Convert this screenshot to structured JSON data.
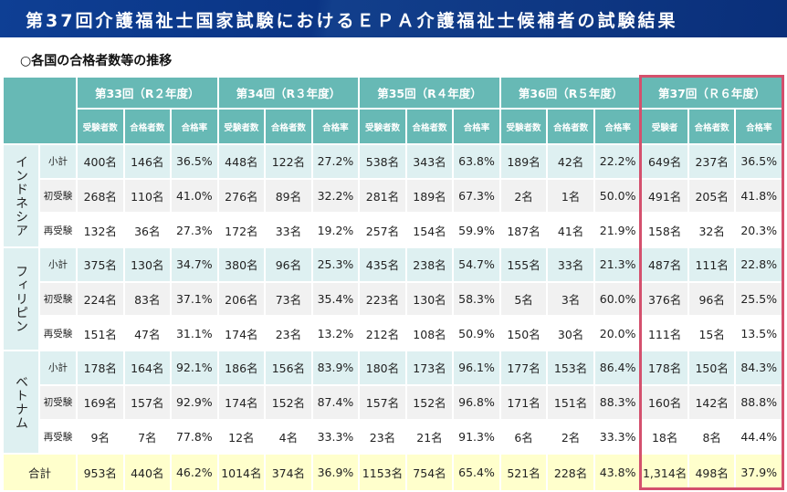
{
  "title": "第37回介護福祉士国家試験におけるＥＰＡ介護福祉士候補者の試験結果",
  "subtitle": "○各国の合格者数等の推移",
  "groups": [
    "第33回（R２年度）",
    "第34回（R３年度）",
    "第35回（R４年度）",
    "第36回（R５年度）",
    "第37回（Ｒ６年度）"
  ],
  "subheaders": [
    [
      "受験者数",
      "合格者数",
      "合格率"
    ],
    [
      "受験者数",
      "合格者数",
      "合格率"
    ],
    [
      "受験者数",
      "合格者数",
      "合格率"
    ],
    [
      "受験者数",
      "合格者数",
      "合格率"
    ],
    [
      "受験者",
      "合格者数",
      "合格率"
    ]
  ],
  "countries": [
    {
      "name": "インドネシア",
      "rows": [
        {
          "label": "小計",
          "cells": [
            "400名",
            "146名",
            "36.5%",
            "448名",
            "122名",
            "27.2%",
            "538名",
            "343名",
            "63.8%",
            "189名",
            "42名",
            "22.2%",
            "649名",
            "237名",
            "36.5%"
          ]
        },
        {
          "label": "初受験",
          "cells": [
            "268名",
            "110名",
            "41.0%",
            "276名",
            "89名",
            "32.2%",
            "281名",
            "189名",
            "67.3%",
            "2名",
            "1名",
            "50.0%",
            "491名",
            "205名",
            "41.8%"
          ]
        },
        {
          "label": "再受験",
          "cells": [
            "132名",
            "36名",
            "27.3%",
            "172名",
            "33名",
            "19.2%",
            "257名",
            "154名",
            "59.9%",
            "187名",
            "41名",
            "21.9%",
            "158名",
            "32名",
            "20.3%"
          ]
        }
      ]
    },
    {
      "name": "フィリピン",
      "rows": [
        {
          "label": "小計",
          "cells": [
            "375名",
            "130名",
            "34.7%",
            "380名",
            "96名",
            "25.3%",
            "435名",
            "238名",
            "54.7%",
            "155名",
            "33名",
            "21.3%",
            "487名",
            "111名",
            "22.8%"
          ]
        },
        {
          "label": "初受験",
          "cells": [
            "224名",
            "83名",
            "37.1%",
            "206名",
            "73名",
            "35.4%",
            "223名",
            "130名",
            "58.3%",
            "5名",
            "3名",
            "60.0%",
            "376名",
            "96名",
            "25.5%"
          ]
        },
        {
          "label": "再受験",
          "cells": [
            "151名",
            "47名",
            "31.1%",
            "174名",
            "23名",
            "13.2%",
            "212名",
            "108名",
            "50.9%",
            "150名",
            "30名",
            "20.0%",
            "111名",
            "15名",
            "13.5%"
          ]
        }
      ]
    },
    {
      "name": "ベトナム",
      "rows": [
        {
          "label": "小計",
          "cells": [
            "178名",
            "164名",
            "92.1%",
            "186名",
            "156名",
            "83.9%",
            "180名",
            "173名",
            "96.1%",
            "177名",
            "153名",
            "86.4%",
            "178名",
            "150名",
            "84.3%"
          ]
        },
        {
          "label": "初受験",
          "cells": [
            "169名",
            "157名",
            "92.9%",
            "174名",
            "152名",
            "87.4%",
            "157名",
            "152名",
            "96.8%",
            "171名",
            "151名",
            "88.3%",
            "160名",
            "142名",
            "88.8%"
          ]
        },
        {
          "label": "再受験",
          "cells": [
            "9名",
            "7名",
            "77.8%",
            "12名",
            "4名",
            "33.3%",
            "23名",
            "21名",
            "91.3%",
            "6名",
            "2名",
            "33.3%",
            "18名",
            "8名",
            "44.4%"
          ]
        }
      ]
    }
  ],
  "total": {
    "label": "合計",
    "cells": [
      "953名",
      "440名",
      "46.2%",
      "1014名",
      "374名",
      "36.9%",
      "1153名",
      "754名",
      "65.4%",
      "521名",
      "228名",
      "43.8%",
      "1,314名",
      "498名",
      "37.9%"
    ]
  },
  "colors": {
    "header": "#67b9b5",
    "highlight": "#d4506d",
    "title_bg": "#0b3585",
    "total_bg": "#ffffcc"
  }
}
